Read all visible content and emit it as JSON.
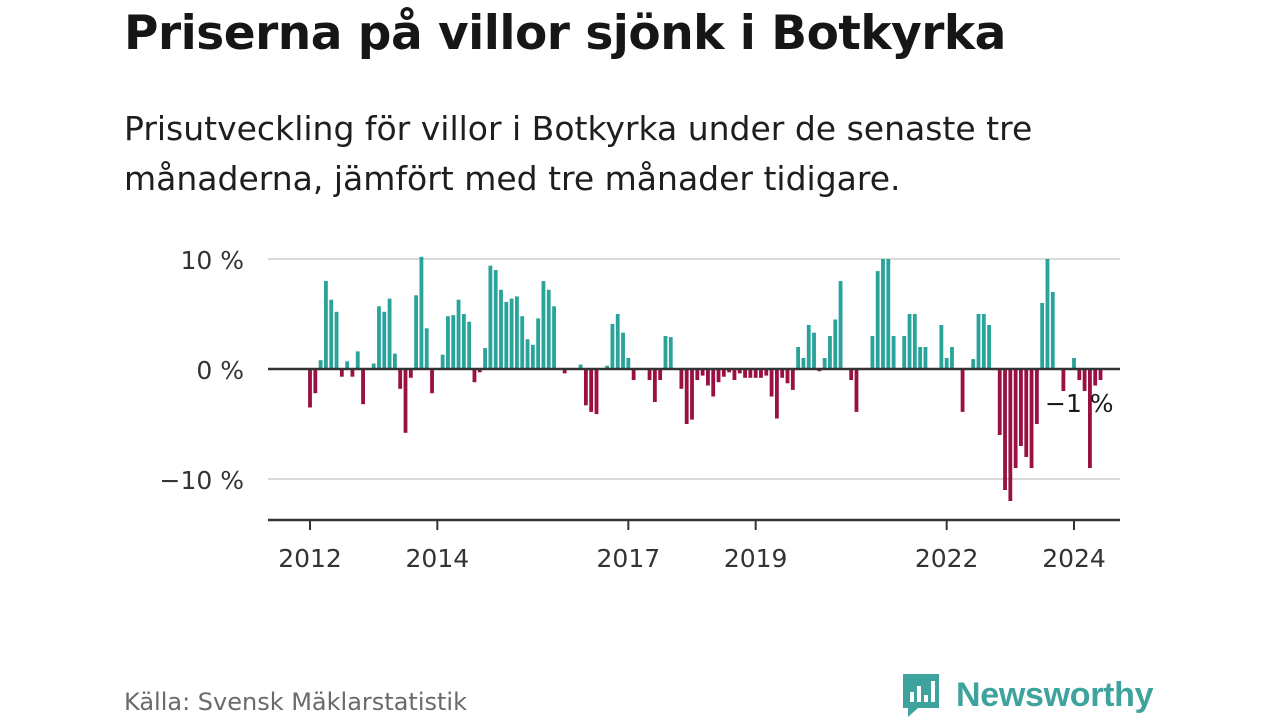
{
  "title": "Priserna på villor sjönk i Botkyrka",
  "subtitle": "Prisutveckling för villor i Botkyrka under de senaste tre månaderna, jämfört med tre månader tidigare.",
  "source": "Källa: Svensk Mäklarstatistik",
  "brand": "Newsworthy",
  "colors": {
    "positive": "#2aa39b",
    "negative": "#9a1043",
    "grid": "#d9d9d9",
    "axis": "#333333",
    "brand": "#3fa39d"
  },
  "chart_data": {
    "type": "bar",
    "title": "Priserna på villor sjönk i Botkyrka",
    "ylabel": "",
    "xlabel": "",
    "ylim": [
      -14,
      10.5
    ],
    "y_ticks": [
      {
        "value": 10,
        "label": "10 %"
      },
      {
        "value": 0,
        "label": "0 %"
      },
      {
        "value": -10,
        "label": "−10 %"
      }
    ],
    "x_start": 2012.0,
    "x_end": 2024.3,
    "x_ticks": [
      {
        "value": 2012.0,
        "label": "2012"
      },
      {
        "value": 2014.0,
        "label": "2014"
      },
      {
        "value": 2017.0,
        "label": "2017"
      },
      {
        "value": 2019.0,
        "label": "2019"
      },
      {
        "value": 2022.0,
        "label": "2022"
      },
      {
        "value": 2024.0,
        "label": "2024"
      }
    ],
    "series_frequency": "monthly",
    "values": [
      -3.5,
      -2.2,
      0.8,
      8.0,
      6.3,
      5.2,
      -0.7,
      0.7,
      -0.7,
      1.6,
      -3.2,
      0.0,
      0.5,
      5.7,
      5.2,
      6.4,
      1.4,
      -1.8,
      -5.8,
      -0.8,
      6.7,
      10.2,
      3.7,
      -2.2,
      0.0,
      1.3,
      4.8,
      4.9,
      6.3,
      5.0,
      4.3,
      -1.2,
      -0.3,
      1.9,
      9.4,
      9.0,
      7.2,
      6.1,
      6.4,
      6.6,
      4.8,
      2.7,
      2.2,
      4.6,
      8.0,
      7.2,
      5.7,
      0.0,
      -0.4,
      0.0,
      0.0,
      0.4,
      -3.3,
      -3.9,
      -4.1,
      0.0,
      0.3,
      4.1,
      5.0,
      3.3,
      1.0,
      -1.0,
      0.0,
      0.0,
      -1.0,
      -3.0,
      -1.0,
      3.0,
      2.9,
      0.0,
      -1.8,
      -5.0,
      -4.6,
      -1.0,
      -0.6,
      -1.5,
      -2.5,
      -1.2,
      -0.7,
      -0.3,
      -1.0,
      -0.4,
      -0.8,
      -0.8,
      -0.8,
      -0.8,
      -0.6,
      -2.5,
      -4.5,
      -0.8,
      -1.3,
      -1.9,
      2.0,
      1.0,
      4.0,
      3.3,
      -0.2,
      1.0,
      3.0,
      4.5,
      8.0,
      0.0,
      -1.0,
      -3.9,
      0.0,
      0.0,
      3.0,
      8.9,
      10.0,
      10.0,
      3.0,
      0.0,
      3.0,
      5.0,
      5.0,
      2.0,
      2.0,
      0.0,
      0.0,
      4.0,
      1.0,
      2.0,
      0.0,
      -3.9,
      0.0,
      0.9,
      5.0,
      5.0,
      4.0,
      0.0,
      -6.0,
      -11.0,
      -12.0,
      -9.0,
      -7.0,
      -8.0,
      -9.0,
      -5.0,
      6.0,
      10.0,
      7.0,
      0.0,
      -2.0,
      0.0,
      1.0,
      -1.0,
      -2.0,
      -9.0,
      -1.5,
      -1.0
    ],
    "annotation": {
      "label": "−1 %",
      "value": -1
    }
  }
}
